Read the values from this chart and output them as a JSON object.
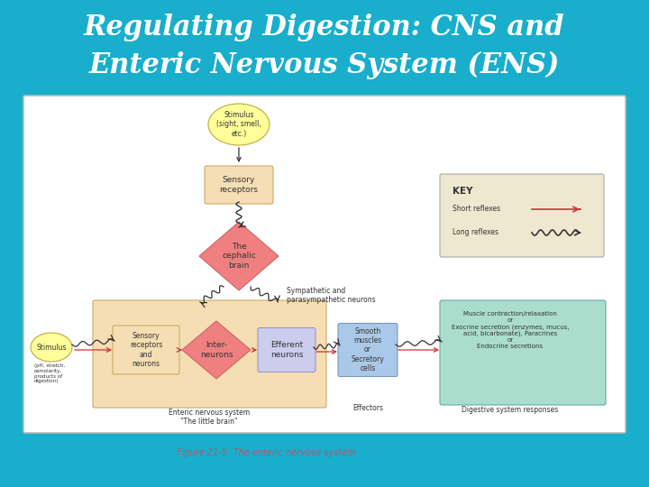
{
  "bg_color": "#18AECC",
  "title_line1": "Regulating Digestion: CNS and",
  "title_line2": "Enteric Nervous System (ENS)",
  "title_color": "#FFFFFF",
  "title_fontsize": 22,
  "caption": "Figure 21-9: The enteric nervous system",
  "caption_color": "#996666",
  "diagram_bg": "#FFFFFF",
  "diagram_border": "#BBBBBB",
  "yellow_fill": "#FFFF99",
  "yellow_border": "#BBAA44",
  "pink_fill": "#F08080",
  "pink_border": "#CC6666",
  "tan_fill": "#F5DEB3",
  "tan_border": "#CCAA66",
  "lavender_fill": "#CCCCEE",
  "lavender_border": "#9999BB",
  "blue_fill": "#AAC8E8",
  "blue_border": "#7799BB",
  "teal_fill": "#AADDCC",
  "teal_border": "#66AAAA",
  "key_fill": "#EEE8D0",
  "key_border": "#AAAAAA",
  "arrow_red": "#CC3333",
  "arrow_black": "#333333",
  "text_dark": "#333333",
  "fs_tiny": 5.5,
  "fs_small": 6.5,
  "fs_med": 7.5,
  "fs_key": 7.0
}
